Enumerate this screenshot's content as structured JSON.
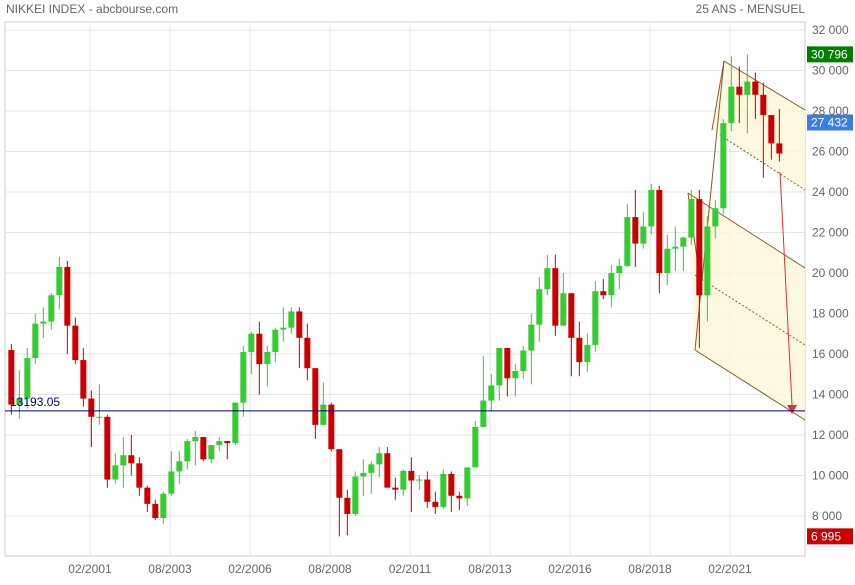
{
  "chart_data": {
    "type": "candlestick",
    "title": "NIKKEI INDEX - abcbourse.com",
    "subtitle": "25 ANS - MENSUEL",
    "x": [
      "07/1998",
      "10/1998",
      "01/1999",
      "04/1999",
      "07/1999",
      "10/1999",
      "01/2000",
      "04/2000",
      "07/2000",
      "10/2000",
      "01/2001",
      "04/2001",
      "07/2001",
      "10/2001",
      "01/2002",
      "04/2002",
      "07/2002",
      "10/2002",
      "01/2003",
      "04/2003",
      "07/2003",
      "10/2003",
      "01/2004",
      "04/2004",
      "07/2004",
      "10/2004",
      "01/2005",
      "04/2005",
      "07/2005",
      "10/2005",
      "01/2006",
      "04/2006",
      "07/2006",
      "10/2006",
      "01/2007",
      "04/2007",
      "07/2007",
      "10/2007",
      "01/2008",
      "04/2008",
      "07/2008",
      "10/2008",
      "01/2009",
      "04/2009",
      "07/2009",
      "10/2009",
      "01/2010",
      "04/2010",
      "07/2010",
      "10/2010",
      "01/2011",
      "04/2011",
      "07/2011",
      "10/2011",
      "01/2012",
      "04/2012",
      "07/2012",
      "10/2012",
      "01/2013",
      "04/2013",
      "07/2013",
      "10/2013",
      "01/2014",
      "04/2014",
      "07/2014",
      "10/2014",
      "01/2015",
      "04/2015",
      "07/2015",
      "10/2015",
      "01/2016",
      "04/2016",
      "07/2016",
      "10/2016",
      "01/2017",
      "04/2017",
      "07/2017",
      "10/2017",
      "01/2018",
      "04/2018",
      "07/2018",
      "10/2018",
      "01/2019",
      "04/2019",
      "07/2019",
      "10/2019",
      "01/2020",
      "04/2020",
      "07/2020",
      "10/2020",
      "01/2021",
      "04/2021",
      "07/2021",
      "10/2021",
      "01/2022",
      "04/2022",
      "07/2022"
    ],
    "open": [
      16200,
      13500,
      13800,
      15800,
      17500,
      17600,
      18900,
      20300,
      17400,
      15700,
      13800,
      12900,
      12900,
      9800,
      10500,
      11000,
      10600,
      9400,
      8600,
      7900,
      9100,
      10200,
      10700,
      11700,
      11900,
      10800,
      11500,
      11700,
      11600,
      13600,
      16100,
      17000,
      15500,
      16100,
      17200,
      17300,
      18100,
      16800,
      15300,
      12500,
      13500,
      11300,
      8900,
      8100,
      9950,
      10130,
      10550,
      11100,
      9400,
      9300,
      10230,
      9750,
      9800,
      8700,
      8450,
      10080,
      9000,
      8870,
      10400,
      12400,
      13700,
      14450,
      16300,
      14800,
      15160,
      16170,
      17450,
      19200,
      20240,
      17400,
      19000,
      16800,
      15600,
      16450,
      19100,
      18900,
      20000,
      20350,
      22760,
      21450,
      22300,
      24100,
      20000,
      21200,
      21300,
      21750,
      23650,
      18900,
      22300,
      23200,
      27400,
      29200,
      28800,
      29450,
      28800,
      27800,
      26400
    ],
    "high": [
      16500,
      15200,
      16300,
      18000,
      18300,
      19000,
      20800,
      20600,
      17800,
      16300,
      14200,
      14500,
      13000,
      11100,
      11900,
      12000,
      10900,
      9500,
      8800,
      9200,
      11200,
      11200,
      11800,
      12200,
      11900,
      11500,
      11900,
      11700,
      13600,
      16400,
      17100,
      17600,
      16400,
      17300,
      18300,
      18300,
      18300,
      17500,
      15300,
      14600,
      13600,
      11300,
      9300,
      10200,
      10800,
      10700,
      11400,
      11400,
      9900,
      10300,
      10900,
      10000,
      10200,
      9200,
      10300,
      10200,
      9200,
      10400,
      12700,
      15900,
      15000,
      16300,
      16300,
      15500,
      16400,
      18000,
      19800,
      20900,
      20900,
      20000,
      19000,
      17600,
      17000,
      19600,
      19700,
      20400,
      20700,
      23400,
      24100,
      23000,
      24400,
      24300,
      21900,
      22300,
      21800,
      24100,
      24100,
      22800,
      23600,
      27600,
      30700,
      30200,
      30800,
      29900,
      29400,
      27800,
      28100
    ],
    "low": [
      13000,
      12800,
      13300,
      15500,
      16800,
      17200,
      18200,
      16000,
      15500,
      13400,
      11400,
      12500,
      9400,
      9600,
      9400,
      10000,
      9000,
      8200,
      7800,
      7600,
      9000,
      9600,
      10300,
      10500,
      10700,
      10600,
      11200,
      10800,
      11500,
      12900,
      15000,
      14000,
      14400,
      15600,
      16600,
      17000,
      15300,
      14700,
      11800,
      12500,
      11200,
      6995,
      7050,
      8000,
      9000,
      9100,
      9900,
      9400,
      8800,
      9000,
      8200,
      9300,
      8400,
      8100,
      8350,
      8200,
      8300,
      8500,
      10400,
      12400,
      13200,
      13700,
      13900,
      13900,
      14800,
      14500,
      16600,
      18900,
      16900,
      17400,
      14900,
      14900,
      15100,
      16100,
      18700,
      18300,
      19200,
      20300,
      20300,
      21200,
      21900,
      19000,
      19400,
      20100,
      20100,
      21400,
      16300,
      17600,
      21700,
      22900,
      27000,
      27400,
      26900,
      27600,
      24700,
      25600,
      25500
    ],
    "close": [
      13500,
      13800,
      15800,
      17500,
      17600,
      18900,
      20300,
      17400,
      15700,
      13800,
      12900,
      12900,
      9800,
      10500,
      11000,
      10600,
      9400,
      8600,
      7900,
      9100,
      10200,
      10700,
      11700,
      11900,
      10800,
      11500,
      11700,
      11600,
      13600,
      16100,
      17000,
      15500,
      16100,
      17200,
      17300,
      18100,
      16800,
      15300,
      12500,
      13500,
      11300,
      8900,
      8100,
      9950,
      10130,
      10550,
      11100,
      9400,
      9300,
      10230,
      9750,
      9800,
      8700,
      8450,
      10080,
      9000,
      8870,
      10400,
      12400,
      13700,
      14450,
      16300,
      14800,
      15160,
      16170,
      17450,
      19200,
      20240,
      17400,
      19000,
      16800,
      15600,
      16450,
      19100,
      18900,
      20000,
      20350,
      22760,
      21450,
      22300,
      24100,
      20000,
      21200,
      21300,
      21750,
      23650,
      18900,
      22300,
      23200,
      27400,
      29200,
      28800,
      29450,
      28800,
      27800,
      26400,
      25900
    ],
    "up_color": "#33cc33",
    "down_color": "#cc0000",
    "xticks": [
      "02/2001",
      "08/2003",
      "02/2006",
      "08/2008",
      "02/2011",
      "08/2013",
      "02/2016",
      "08/2018",
      "02/2021"
    ],
    "ylim": [
      6000,
      33500
    ],
    "yticks": [
      {
        "value": 8000,
        "label": "8 000"
      },
      {
        "value": 10000,
        "label": "10 000"
      },
      {
        "value": 12000,
        "label": "12 000"
      },
      {
        "value": 14000,
        "label": "14 000"
      },
      {
        "value": 16000,
        "label": "16 000"
      },
      {
        "value": 18000,
        "label": "18 000"
      },
      {
        "value": 20000,
        "label": "20 000"
      },
      {
        "value": 22000,
        "label": "22 000"
      },
      {
        "value": 24000,
        "label": "24 000"
      },
      {
        "value": 26000,
        "label": "26 000"
      },
      {
        "value": 28000,
        "label": "28 000"
      },
      {
        "value": 30000,
        "label": "30 000"
      },
      {
        "value": 32000,
        "label": "32 000"
      }
    ],
    "grid": true,
    "hline": {
      "value": 13193.05,
      "color": "#000080"
    },
    "price_labels": [
      {
        "value": 30796,
        "label": "30 796",
        "color": "#008000"
      },
      {
        "value": 27432,
        "label": "27 432",
        "color": "#3a7de8"
      },
      {
        "value": 6995,
        "label": "6 995",
        "color": "#cc0000"
      }
    ]
  }
}
